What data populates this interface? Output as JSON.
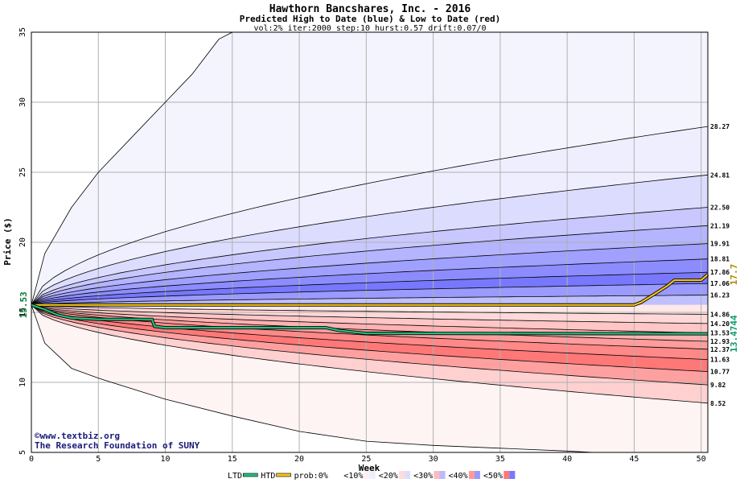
{
  "chart_data": {
    "type": "area",
    "title": "Hawthorn Bancshares, Inc. - 2016",
    "subtitle": "Predicted High to Date (blue) &  Low to Date (red)",
    "params": "vol:2% iter:2000 step:10 hurst:0.57 drift:0.07/0",
    "xlabel": "Week",
    "ylabel": "Price ($)",
    "xlim": [
      0,
      50.5
    ],
    "ylim": [
      5,
      35
    ],
    "x_ticks": [
      0,
      5,
      10,
      15,
      20,
      25,
      30,
      35,
      40,
      45,
      50
    ],
    "y_ticks": [
      5,
      10,
      15,
      20,
      25,
      30,
      35
    ],
    "grid": true,
    "start_price": 15.53,
    "start_label": "15.53",
    "high_percentile_curves": [
      {
        "end": 28.27,
        "end_label": "28.27"
      },
      {
        "end": 24.81,
        "end_label": "24.81"
      },
      {
        "end": 22.5,
        "end_label": "22.50"
      },
      {
        "end": 21.19,
        "end_label": "21.19"
      },
      {
        "end": 19.91,
        "end_label": "19.91"
      },
      {
        "end": 18.81,
        "end_label": "18.81"
      },
      {
        "end": 17.86,
        "end_label": "17.86"
      },
      {
        "end": 17.06,
        "end_label": "17.06"
      },
      {
        "end": 16.23,
        "end_label": "16.23"
      }
    ],
    "low_percentile_curves": [
      {
        "end": 14.86,
        "end_label": "14.86"
      },
      {
        "end": 14.2,
        "end_label": "14.20"
      },
      {
        "end": 13.53,
        "end_label": "13.53"
      },
      {
        "end": 12.93,
        "end_label": "12.93"
      },
      {
        "end": 12.37,
        "end_label": "12.37"
      },
      {
        "end": 11.63,
        "end_label": "11.63"
      },
      {
        "end": 10.77,
        "end_label": "10.77"
      },
      {
        "end": 9.82,
        "end_label": "9.82"
      },
      {
        "end": 8.52,
        "end_label": "8.52"
      }
    ],
    "outer_high_curve": [
      [
        0,
        15.53
      ],
      [
        1,
        19.2
      ],
      [
        3,
        22.5
      ],
      [
        5,
        25
      ],
      [
        8,
        28
      ],
      [
        10,
        30
      ],
      [
        12,
        32
      ],
      [
        14,
        34.5
      ],
      [
        15,
        35
      ]
    ],
    "outer_low_curve": [
      [
        0,
        15.53
      ],
      [
        1,
        12.8
      ],
      [
        3,
        11
      ],
      [
        5,
        10.3
      ],
      [
        10,
        8.8
      ],
      [
        15,
        7.6
      ],
      [
        20,
        6.5
      ],
      [
        25,
        5.8
      ],
      [
        30,
        5.5
      ],
      [
        35,
        5.3
      ],
      [
        40,
        5.1
      ],
      [
        42,
        5.0
      ]
    ],
    "series": [
      {
        "name": "HTD",
        "color": "#f5c518",
        "end_label": "17.7",
        "points": [
          [
            0,
            15.53
          ],
          [
            45,
            15.53
          ],
          [
            45.5,
            15.7
          ],
          [
            46,
            16.0
          ],
          [
            46.5,
            16.3
          ],
          [
            47,
            16.6
          ],
          [
            47.5,
            16.9
          ],
          [
            48,
            17.3
          ],
          [
            50,
            17.3
          ],
          [
            50.5,
            17.7
          ]
        ]
      },
      {
        "name": "LTD",
        "color": "#20c080",
        "end_label": "13.4744",
        "points": [
          [
            0,
            15.53
          ],
          [
            1,
            15.2
          ],
          [
            2,
            14.8
          ],
          [
            3,
            14.6
          ],
          [
            5,
            14.5
          ],
          [
            9,
            14.5
          ],
          [
            9.2,
            14.0
          ],
          [
            10,
            13.9
          ],
          [
            22,
            13.9
          ],
          [
            23,
            13.7
          ],
          [
            25,
            13.5
          ],
          [
            50.5,
            13.47
          ]
        ]
      }
    ],
    "legend": [
      {
        "label": "LTD",
        "color": "#20c080",
        "kind": "line"
      },
      {
        "label": "HTD",
        "color": "#f5c518",
        "kind": "line"
      },
      {
        "label": "prob:0%",
        "colors": [
          "#ffffff",
          "#ffffff"
        ]
      },
      {
        "label": "<10%",
        "colors": [
          "#fff0f0",
          "#eeeeff"
        ]
      },
      {
        "label": "<20%",
        "colors": [
          "#ffdcdc",
          "#dcdcff"
        ]
      },
      {
        "label": "<30%",
        "colors": [
          "#ffbaba",
          "#babaff"
        ]
      },
      {
        "label": "<40%",
        "colors": [
          "#ff9a9a",
          "#9a9aff"
        ]
      },
      {
        "label": "<50%",
        "colors": [
          "#ff7878",
          "#7878ff"
        ]
      }
    ],
    "legend_placement": "bottom"
  },
  "colors": {
    "high_bands": [
      "#eeeeff",
      "#dcdcff",
      "#c8c8ff",
      "#b4b4ff",
      "#a0a0ff",
      "#8c8cff",
      "#7878ff",
      "#9a9aff",
      "#c0c0ff"
    ],
    "low_bands": [
      "#ffe8e8",
      "#ffd8d8",
      "#ffc6c6",
      "#ffb2b2",
      "#ff9c9c",
      "#ff8888",
      "#ff7878",
      "#ffa0a0",
      "#ffd0d0"
    ],
    "outer_high_fill": "#f4f4ff",
    "outer_low_fill": "#fff4f4",
    "title": "#000000",
    "grid": "#b0b0b0"
  },
  "watermark": {
    "line1": "©www.textbiz.org",
    "line2": "The Research Foundation of SUNY"
  }
}
